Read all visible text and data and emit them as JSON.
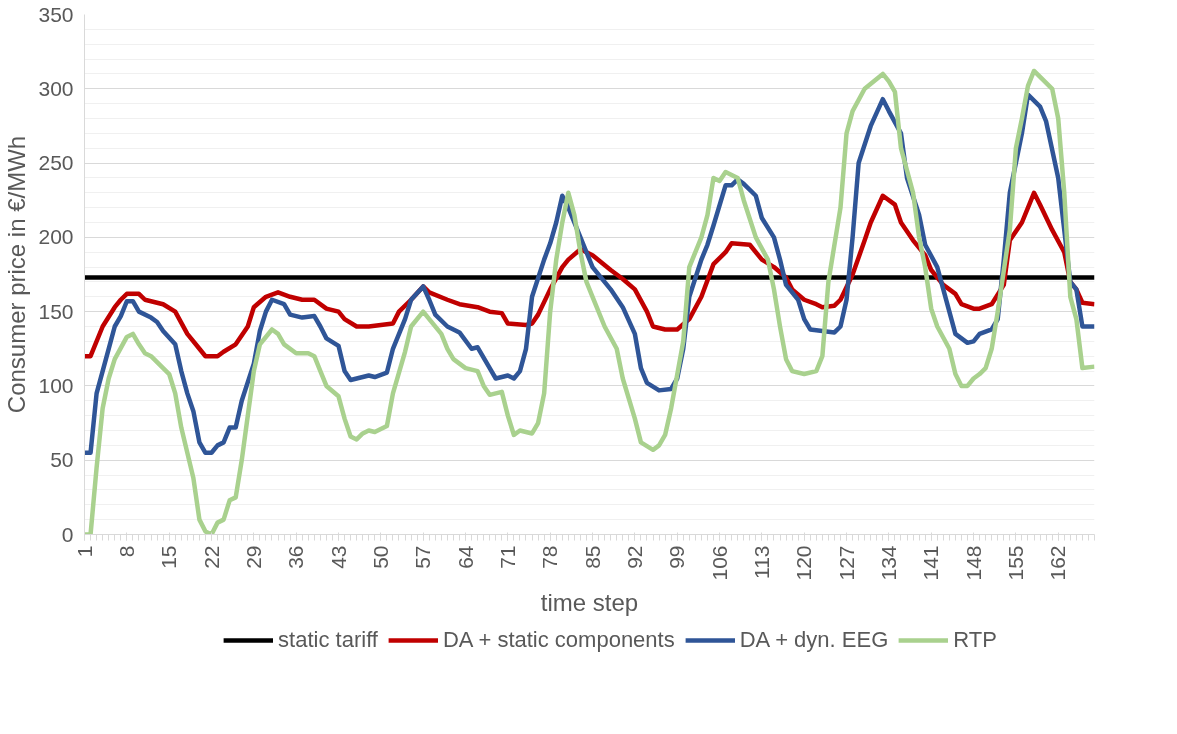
{
  "chart_data": {
    "type": "line",
    "xlabel": "time step",
    "ylabel": "Consumer price in €/MWh",
    "xlim": [
      1,
      168
    ],
    "ylim": [
      0,
      350
    ],
    "xticks": [
      1,
      8,
      15,
      22,
      29,
      36,
      43,
      50,
      57,
      64,
      71,
      78,
      85,
      92,
      99,
      106,
      113,
      120,
      127,
      134,
      141,
      148,
      155,
      162
    ],
    "yticks": [
      0,
      {
        "value": 10,
        "label": null
      },
      {
        "value": 20,
        "label": null
      },
      {
        "value": 30,
        "label": null
      },
      {
        "value": 40,
        "label": null
      },
      50,
      {
        "value": 60,
        "label": null
      },
      {
        "value": 70,
        "label": null
      },
      {
        "value": 80,
        "label": null
      },
      {
        "value": 90,
        "label": null
      },
      100,
      {
        "value": 110,
        "label": null
      },
      {
        "value": 120,
        "label": null
      },
      {
        "value": 130,
        "label": null
      },
      {
        "value": 140,
        "label": null
      },
      150,
      {
        "value": 160,
        "label": null
      },
      {
        "value": 170,
        "label": null
      },
      {
        "value": 180,
        "label": null
      },
      {
        "value": 190,
        "label": null
      },
      200,
      {
        "value": 210,
        "label": null
      },
      {
        "value": 220,
        "label": null
      },
      {
        "value": 230,
        "label": null
      },
      {
        "value": 240,
        "label": null
      },
      250,
      {
        "value": 260,
        "label": null
      },
      {
        "value": 270,
        "label": null
      },
      {
        "value": 280,
        "label": null
      },
      {
        "value": 290,
        "label": null
      },
      300,
      {
        "value": 310,
        "label": null
      },
      {
        "value": 320,
        "label": null
      },
      {
        "value": 330,
        "label": null
      },
      {
        "value": 340,
        "label": null
      },
      350
    ],
    "grid": "y",
    "legend": "bottom",
    "marker": "none",
    "line_style": "solid",
    "series": [
      {
        "name": "static tariff",
        "color": "#000000",
        "x": [
          1,
          168
        ],
        "values": [
          173,
          173
        ]
      },
      {
        "name": "DA + static components",
        "color": "#c00000",
        "x": [
          1,
          2,
          4,
          6,
          7,
          8,
          10,
          11,
          14,
          16,
          18,
          20,
          21,
          23,
          24,
          26,
          28,
          29,
          31,
          33,
          35,
          37,
          39,
          41,
          43,
          44,
          46,
          48,
          50,
          52,
          53,
          55,
          57,
          58,
          61,
          63,
          66,
          68,
          70,
          71,
          74,
          75,
          76,
          78,
          80,
          81,
          83,
          85,
          88,
          90,
          92,
          94,
          95,
          97,
          99,
          101,
          103,
          105,
          107,
          108,
          111,
          113,
          115,
          117,
          118,
          120,
          122,
          123,
          125,
          126,
          128,
          130,
          131,
          133,
          135,
          136,
          138,
          140,
          141,
          143,
          145,
          146,
          148,
          149,
          151,
          153,
          154,
          156,
          158,
          159,
          161,
          163,
          164,
          165,
          166,
          168
        ],
        "values": [
          120,
          120,
          140,
          153,
          158,
          162,
          162,
          158,
          155,
          150,
          135,
          125,
          120,
          120,
          123,
          128,
          140,
          153,
          160,
          163,
          160,
          158,
          158,
          152,
          150,
          145,
          140,
          140,
          141,
          142,
          150,
          158,
          167,
          163,
          158,
          155,
          153,
          150,
          149,
          142,
          141,
          142,
          148,
          165,
          180,
          185,
          192,
          188,
          178,
          172,
          165,
          150,
          140,
          138,
          138,
          145,
          160,
          182,
          190,
          196,
          195,
          185,
          180,
          173,
          165,
          158,
          155,
          153,
          154,
          158,
          175,
          198,
          210,
          228,
          222,
          210,
          198,
          188,
          178,
          168,
          162,
          155,
          152,
          152,
          155,
          168,
          198,
          210,
          230,
          222,
          205,
          190,
          170,
          165,
          156,
          155
        ]
      },
      {
        "name": "DA + dyn. EEG",
        "color": "#2f5597",
        "x": [
          1,
          2,
          3,
          5,
          6,
          7,
          8,
          9,
          10,
          12,
          13,
          14,
          16,
          17,
          18,
          19,
          20,
          21,
          22,
          23,
          24,
          25,
          26,
          27,
          29,
          30,
          31,
          32,
          34,
          35,
          37,
          39,
          40,
          41,
          43,
          44,
          45,
          47,
          48,
          49,
          51,
          52,
          54,
          55,
          57,
          58,
          59,
          61,
          63,
          65,
          66,
          68,
          69,
          71,
          72,
          73,
          74,
          75,
          77,
          78,
          79,
          80,
          81,
          83,
          85,
          88,
          90,
          92,
          93,
          94,
          96,
          98,
          99,
          100,
          101,
          103,
          104,
          105,
          107,
          108,
          109,
          110,
          112,
          113,
          115,
          116,
          117,
          119,
          120,
          121,
          123,
          125,
          126,
          127,
          128,
          129,
          131,
          133,
          134,
          136,
          137,
          139,
          140,
          142,
          143,
          144,
          145,
          147,
          148,
          149,
          151,
          152,
          153,
          154,
          156,
          157,
          159,
          160,
          162,
          163,
          164,
          165,
          166,
          168
        ],
        "values": [
          55,
          55,
          95,
          125,
          140,
          147,
          157,
          157,
          150,
          146,
          143,
          137,
          128,
          110,
          95,
          83,
          62,
          55,
          55,
          60,
          62,
          72,
          72,
          90,
          115,
          137,
          150,
          158,
          155,
          148,
          146,
          147,
          140,
          132,
          127,
          110,
          104,
          106,
          107,
          106,
          109,
          125,
          145,
          158,
          167,
          158,
          148,
          140,
          136,
          125,
          126,
          112,
          105,
          107,
          105,
          110,
          125,
          160,
          185,
          196,
          210,
          228,
          220,
          200,
          180,
          165,
          153,
          135,
          112,
          102,
          97,
          98,
          105,
          125,
          160,
          185,
          195,
          208,
          235,
          235,
          239,
          236,
          228,
          213,
          200,
          185,
          168,
          158,
          145,
          138,
          137,
          136,
          140,
          158,
          200,
          250,
          275,
          293,
          285,
          270,
          240,
          215,
          195,
          180,
          165,
          150,
          135,
          129,
          130,
          135,
          138,
          145,
          185,
          230,
          270,
          296,
          288,
          278,
          240,
          205,
          170,
          165,
          140,
          140
        ]
      },
      {
        "name": "RTP",
        "color": "#a9d18e",
        "x": [
          1,
          2,
          3,
          4,
          5,
          6,
          8,
          9,
          10,
          11,
          12,
          14,
          15,
          16,
          17,
          18,
          19,
          20,
          21,
          22,
          23,
          24,
          25,
          26,
          27,
          28,
          29,
          30,
          32,
          33,
          34,
          36,
          38,
          39,
          40,
          41,
          43,
          44,
          45,
          46,
          47,
          48,
          49,
          51,
          52,
          54,
          55,
          57,
          58,
          60,
          61,
          62,
          64,
          66,
          67,
          68,
          70,
          71,
          72,
          73,
          75,
          76,
          77,
          78,
          79,
          80,
          81,
          82,
          83,
          84,
          85,
          87,
          89,
          90,
          92,
          93,
          95,
          96,
          97,
          98,
          100,
          101,
          103,
          104,
          105,
          106,
          107,
          109,
          110,
          112,
          114,
          115,
          116,
          117,
          118,
          120,
          122,
          123,
          124,
          126,
          127,
          128,
          130,
          133,
          134,
          135,
          136,
          138,
          139,
          140,
          141,
          142,
          144,
          145,
          146,
          147,
          148,
          149,
          150,
          151,
          152,
          154,
          155,
          156,
          157,
          158,
          159,
          161,
          162,
          163,
          164,
          165,
          166,
          168
        ],
        "values": [
          0,
          0,
          45,
          85,
          105,
          118,
          133,
          135,
          128,
          122,
          120,
          112,
          108,
          95,
          72,
          55,
          38,
          10,
          2,
          0,
          8,
          10,
          23,
          25,
          50,
          80,
          110,
          128,
          138,
          135,
          128,
          122,
          122,
          120,
          110,
          100,
          93,
          78,
          66,
          64,
          68,
          70,
          69,
          73,
          95,
          123,
          140,
          150,
          145,
          135,
          125,
          118,
          112,
          110,
          100,
          94,
          96,
          80,
          67,
          70,
          68,
          75,
          95,
          150,
          185,
          210,
          230,
          215,
          190,
          170,
          160,
          140,
          125,
          105,
          78,
          62,
          57,
          60,
          67,
          85,
          130,
          180,
          200,
          215,
          240,
          238,
          244,
          240,
          225,
          200,
          185,
          165,
          140,
          118,
          110,
          108,
          110,
          120,
          170,
          220,
          270,
          285,
          300,
          310,
          305,
          298,
          260,
          230,
          200,
          180,
          152,
          140,
          125,
          108,
          100,
          100,
          105,
          108,
          112,
          125,
          150,
          205,
          260,
          280,
          302,
          312,
          308,
          300,
          280,
          230,
          160,
          145,
          112,
          113
        ]
      }
    ]
  }
}
